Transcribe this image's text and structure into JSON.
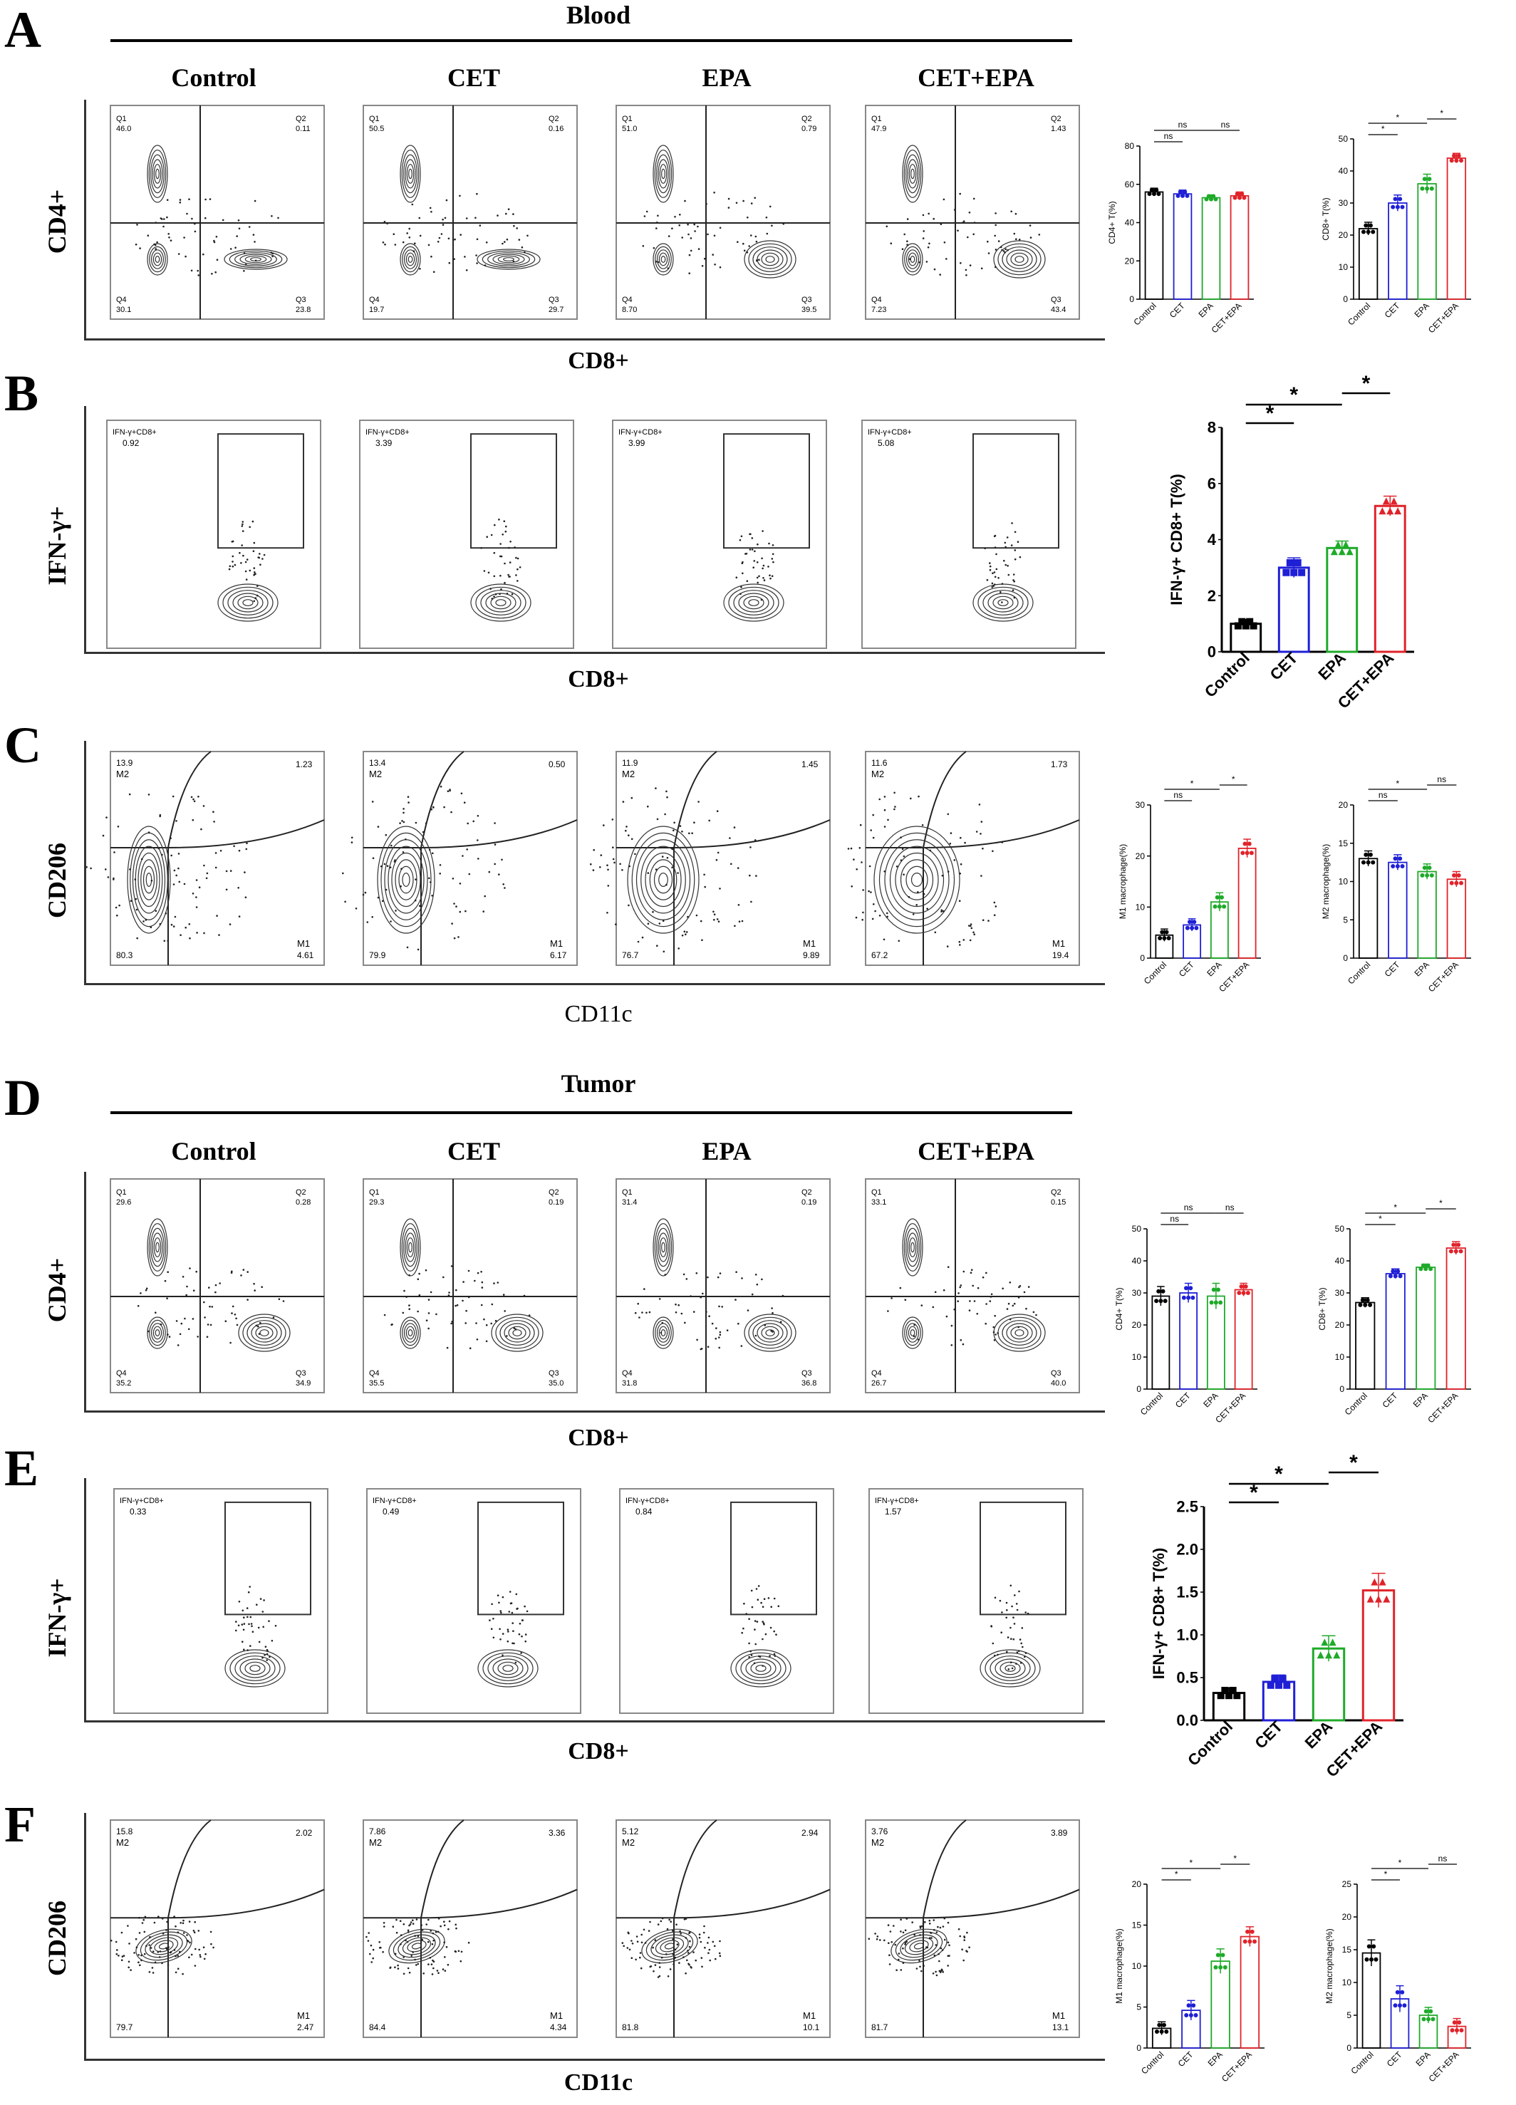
{
  "sections": {
    "A": {
      "letter": "A",
      "title": "Blood",
      "columns": [
        "Control",
        "CET",
        "EPA",
        "CET+EPA"
      ],
      "ylabel": "CD4+",
      "xlabel": "CD8+"
    },
    "B": {
      "letter": "B",
      "ylabel": "IFN-γ+",
      "xlabel": "CD8+"
    },
    "C": {
      "letter": "C",
      "ylabel": "CD206",
      "xlabel": "CD11c"
    },
    "D": {
      "letter": "D",
      "title": "Tumor",
      "columns": [
        "Control",
        "CET",
        "EPA",
        "CET+EPA"
      ],
      "ylabel": "CD4+",
      "xlabel": "CD8+"
    },
    "E": {
      "letter": "E",
      "ylabel": "IFN-γ+",
      "xlabel": "CD8+"
    },
    "F": {
      "letter": "F",
      "ylabel": "CD206",
      "xlabel": "CD11c"
    }
  },
  "flow_plots": {
    "A": [
      {
        "q1": "Q1",
        "q1v": "46.0",
        "q2": "Q2",
        "q2v": "0.11",
        "q3": "Q3",
        "q3v": "23.8",
        "q4": "Q4",
        "q4v": "30.1"
      },
      {
        "q1": "Q1",
        "q1v": "50.5",
        "q2": "Q2",
        "q2v": "0.16",
        "q3": "Q3",
        "q3v": "29.7",
        "q4": "Q4",
        "q4v": "19.7"
      },
      {
        "q1": "Q1",
        "q1v": "51.0",
        "q2": "Q2",
        "q2v": "0.79",
        "q3": "Q3",
        "q3v": "39.5",
        "q4": "Q4",
        "q4v": "8.70"
      },
      {
        "q1": "Q1",
        "q1v": "47.9",
        "q2": "Q2",
        "q2v": "1.43",
        "q3": "Q3",
        "q3v": "43.4",
        "q4": "Q4",
        "q4v": "7.23"
      }
    ],
    "B": [
      {
        "gate": "IFN-γ+CD8+",
        "value": "0.92"
      },
      {
        "gate": "IFN-γ+CD8+",
        "value": "3.39"
      },
      {
        "gate": "IFN-γ+CD8+",
        "value": "3.99"
      },
      {
        "gate": "IFN-γ+CD8+",
        "value": "5.08"
      }
    ],
    "C": [
      {
        "tl": "13.9",
        "m2": "M2",
        "tr": "1.23",
        "bl": "80.3",
        "m1": "M1",
        "br": "4.61"
      },
      {
        "tl": "13.4",
        "m2": "M2",
        "tr": "0.50",
        "bl": "79.9",
        "m1": "M1",
        "br": "6.17"
      },
      {
        "tl": "11.9",
        "m2": "M2",
        "tr": "1.45",
        "bl": "76.7",
        "m1": "M1",
        "br": "9.89"
      },
      {
        "tl": "11.6",
        "m2": "M2",
        "tr": "1.73",
        "bl": "67.2",
        "m1": "M1",
        "br": "19.4"
      }
    ],
    "D": [
      {
        "q1": "Q1",
        "q1v": "29.6",
        "q2": "Q2",
        "q2v": "0.28",
        "q3": "Q3",
        "q3v": "34.9",
        "q4": "Q4",
        "q4v": "35.2"
      },
      {
        "q1": "Q1",
        "q1v": "29.3",
        "q2": "Q2",
        "q2v": "0.19",
        "q3": "Q3",
        "q3v": "35.0",
        "q4": "Q4",
        "q4v": "35.5"
      },
      {
        "q1": "Q1",
        "q1v": "31.4",
        "q2": "Q2",
        "q2v": "0.19",
        "q3": "Q3",
        "q3v": "36.8",
        "q4": "Q4",
        "q4v": "31.8"
      },
      {
        "q1": "Q1",
        "q1v": "33.1",
        "q2": "Q2",
        "q2v": "0.15",
        "q3": "Q3",
        "q3v": "40.0",
        "q4": "Q4",
        "q4v": "26.7"
      }
    ],
    "E": [
      {
        "gate": "IFN-γ+CD8+",
        "value": "0.33"
      },
      {
        "gate": "IFN-γ+CD8+",
        "value": "0.49"
      },
      {
        "gate": "IFN-γ+CD8+",
        "value": "0.84"
      },
      {
        "gate": "IFN-γ+CD8+",
        "value": "1.57"
      }
    ],
    "F": [
      {
        "tl": "15.8",
        "m2": "M2",
        "tr": "2.02",
        "bl": "79.7",
        "m1": "M1",
        "br": "2.47"
      },
      {
        "tl": "7.86",
        "m2": "M2",
        "tr": "3.36",
        "bl": "84.4",
        "m1": "M1",
        "br": "4.34"
      },
      {
        "tl": "5.12",
        "m2": "M2",
        "tr": "2.94",
        "bl": "81.8",
        "m1": "M1",
        "br": "10.1"
      },
      {
        "tl": "3.76",
        "m2": "M2",
        "tr": "3.89",
        "bl": "81.7",
        "m1": "M1",
        "br": "13.1"
      }
    ]
  },
  "colors": {
    "Control": "#000000",
    "CET": "#1f1fd6",
    "EPA": "#1faa2a",
    "CET+EPA": "#e0232a"
  },
  "chart_data": [
    {
      "id": "A1",
      "type": "bar",
      "categories": [
        "Control",
        "CET",
        "EPA",
        "CET+EPA"
      ],
      "values": [
        56,
        55,
        53,
        54
      ],
      "errors": [
        2,
        2,
        1.5,
        2
      ],
      "ylabel": "CD4+ T(%)",
      "ylim": [
        0,
        80
      ],
      "yticks": [
        0,
        20,
        40,
        60,
        80
      ],
      "sig": [
        {
          "from": 0,
          "to": 1,
          "label": "ns",
          "level": 0
        },
        {
          "from": 0,
          "to": 2,
          "label": "ns",
          "level": 1
        },
        {
          "from": 2,
          "to": 3,
          "label": "ns",
          "level": 1
        }
      ],
      "marker": "circle"
    },
    {
      "id": "A2",
      "type": "bar",
      "categories": [
        "Control",
        "CET",
        "EPA",
        "CET+EPA"
      ],
      "values": [
        22,
        30,
        36,
        44
      ],
      "errors": [
        2,
        2.5,
        3,
        1.5
      ],
      "ylabel": "CD8+ T(%)",
      "ylim": [
        0,
        50
      ],
      "yticks": [
        0,
        10,
        20,
        30,
        40,
        50
      ],
      "sig": [
        {
          "from": 0,
          "to": 1,
          "label": "*",
          "level": 0
        },
        {
          "from": 0,
          "to": 2,
          "label": "*",
          "level": 1
        },
        {
          "from": 2,
          "to": 3,
          "label": "*",
          "level": 2
        }
      ],
      "marker": "circle"
    },
    {
      "id": "B1",
      "type": "bar",
      "categories": [
        "Control",
        "CET",
        "EPA",
        "CET+EPA"
      ],
      "values": [
        1.0,
        3.0,
        3.7,
        5.2
      ],
      "errors": [
        0.15,
        0.35,
        0.25,
        0.35
      ],
      "ylabel": "IFN-γ+ CD8+ T(%)",
      "ylim": [
        0,
        8
      ],
      "yticks": [
        0,
        2,
        4,
        6,
        8
      ],
      "sig": [
        {
          "from": 0,
          "to": 1,
          "label": "*",
          "level": 0
        },
        {
          "from": 0,
          "to": 2,
          "label": "*",
          "level": 1
        },
        {
          "from": 2,
          "to": 3,
          "label": "*",
          "level": 2
        }
      ],
      "marker": "square"
    },
    {
      "id": "C1",
      "type": "bar",
      "categories": [
        "Control",
        "CET",
        "EPA",
        "CET+EPA"
      ],
      "values": [
        4.5,
        6.5,
        11,
        21.5
      ],
      "errors": [
        1.2,
        1.2,
        1.8,
        1.8
      ],
      "ylabel": "M1 macrophage(%)",
      "ylim": [
        0,
        30
      ],
      "yticks": [
        0,
        10,
        20,
        30
      ],
      "sig": [
        {
          "from": 0,
          "to": 1,
          "label": "ns",
          "level": 0
        },
        {
          "from": 0,
          "to": 2,
          "label": "*",
          "level": 1
        },
        {
          "from": 2,
          "to": 3,
          "label": "*",
          "level": 2
        }
      ],
      "marker": "circle"
    },
    {
      "id": "C2",
      "type": "bar",
      "categories": [
        "Control",
        "CET",
        "EPA",
        "CET+EPA"
      ],
      "values": [
        13,
        12.5,
        11.3,
        10.3
      ],
      "errors": [
        1,
        1,
        1,
        1
      ],
      "ylabel": "M2 macrophage(%)",
      "ylim": [
        0,
        20
      ],
      "yticks": [
        0,
        5,
        10,
        15,
        20
      ],
      "sig": [
        {
          "from": 0,
          "to": 1,
          "label": "ns",
          "level": 0
        },
        {
          "from": 0,
          "to": 2,
          "label": "*",
          "level": 1
        },
        {
          "from": 2,
          "to": 3,
          "label": "ns",
          "level": 2
        }
      ],
      "marker": "circle"
    },
    {
      "id": "D1",
      "type": "bar",
      "categories": [
        "Control",
        "CET",
        "EPA",
        "CET+EPA"
      ],
      "values": [
        29,
        30,
        29,
        31
      ],
      "errors": [
        3,
        3,
        4,
        2
      ],
      "ylabel": "CD4+ T(%)",
      "ylim": [
        0,
        50
      ],
      "yticks": [
        0,
        10,
        20,
        30,
        40,
        50
      ],
      "sig": [
        {
          "from": 0,
          "to": 1,
          "label": "ns",
          "level": 0
        },
        {
          "from": 0,
          "to": 2,
          "label": "ns",
          "level": 1
        },
        {
          "from": 2,
          "to": 3,
          "label": "ns",
          "level": 1
        }
      ],
      "marker": "circle"
    },
    {
      "id": "D2",
      "type": "bar",
      "categories": [
        "Control",
        "CET",
        "EPA",
        "CET+EPA"
      ],
      "values": [
        27,
        36,
        38,
        44
      ],
      "errors": [
        1.5,
        1.5,
        1,
        2
      ],
      "ylabel": "CD8+ T(%)",
      "ylim": [
        0,
        50
      ],
      "yticks": [
        0,
        10,
        20,
        30,
        40,
        50
      ],
      "sig": [
        {
          "from": 0,
          "to": 1,
          "label": "*",
          "level": 0
        },
        {
          "from": 0,
          "to": 2,
          "label": "*",
          "level": 1
        },
        {
          "from": 2,
          "to": 3,
          "label": "*",
          "level": 2
        }
      ],
      "marker": "circle"
    },
    {
      "id": "E1",
      "type": "bar",
      "categories": [
        "Control",
        "CET",
        "EPA",
        "CET+EPA"
      ],
      "values": [
        0.32,
        0.45,
        0.84,
        1.52
      ],
      "errors": [
        0.06,
        0.08,
        0.15,
        0.2
      ],
      "ylabel": "IFN-γ+ CD8+ T(%)",
      "ylim": [
        0,
        2.5
      ],
      "yticks": [
        0.0,
        0.5,
        1.0,
        1.5,
        2.0,
        2.5
      ],
      "sig": [
        {
          "from": 0,
          "to": 1,
          "label": "*",
          "level": 0
        },
        {
          "from": 0,
          "to": 2,
          "label": "*",
          "level": 1
        },
        {
          "from": 2,
          "to": 3,
          "label": "*",
          "level": 2
        }
      ],
      "marker": "square"
    },
    {
      "id": "F1",
      "type": "bar",
      "categories": [
        "Control",
        "CET",
        "EPA",
        "CET+EPA"
      ],
      "values": [
        2.4,
        4.6,
        10.6,
        13.6
      ],
      "errors": [
        0.8,
        1.2,
        1.5,
        1.2
      ],
      "ylabel": "M1 macrophage(%)",
      "ylim": [
        0,
        20
      ],
      "yticks": [
        0,
        5,
        10,
        15,
        20
      ],
      "sig": [
        {
          "from": 0,
          "to": 1,
          "label": "*",
          "level": 0
        },
        {
          "from": 0,
          "to": 2,
          "label": "*",
          "level": 1
        },
        {
          "from": 2,
          "to": 3,
          "label": "*",
          "level": 2
        }
      ],
      "marker": "circle"
    },
    {
      "id": "F2",
      "type": "bar",
      "categories": [
        "Control",
        "CET",
        "EPA",
        "CET+EPA"
      ],
      "values": [
        14.5,
        7.5,
        5.0,
        3.3
      ],
      "errors": [
        2,
        2,
        1.2,
        1.2
      ],
      "ylabel": "M2 macrophage(%)",
      "ylim": [
        0,
        25
      ],
      "yticks": [
        0,
        5,
        10,
        15,
        20,
        25
      ],
      "sig": [
        {
          "from": 0,
          "to": 1,
          "label": "*",
          "level": 0
        },
        {
          "from": 0,
          "to": 2,
          "label": "*",
          "level": 1
        },
        {
          "from": 2,
          "to": 3,
          "label": "ns",
          "level": 2
        }
      ],
      "marker": "circle"
    }
  ]
}
